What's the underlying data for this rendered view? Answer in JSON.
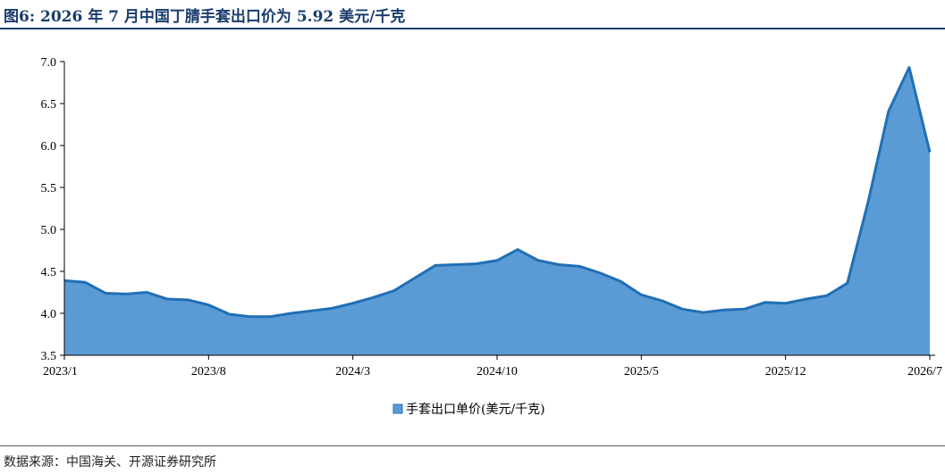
{
  "figure": {
    "title": "图6:  2026 年 7 月中国丁腈手套出口价为 5.92 美元/千克",
    "source": "数据来源：中国海关、开源证券研究所"
  },
  "colors": {
    "fill": "#5b9bd5",
    "line": "#1f6fb5",
    "axis": "#000000",
    "title": "#1a3c6e"
  },
  "chart_data": {
    "type": "area",
    "title": "",
    "xlabel": "",
    "ylabel": "",
    "ylim": [
      3.5,
      7.0
    ],
    "yticks": [
      "3.5",
      "4.0",
      "4.5",
      "5.0",
      "5.5",
      "6.0",
      "6.5",
      "7.0"
    ],
    "x_tick_labels": [
      "2023/1",
      "2023/8",
      "2024/3",
      "2024/10",
      "2025/5",
      "2025/12",
      "2026/7"
    ],
    "x_tick_positions": [
      "2023/1",
      "2023/8",
      "2024/3",
      "2024/10",
      "2025/5",
      "2025/12",
      "2026/7"
    ],
    "grid": false,
    "legend": "bottom-center",
    "x": [
      "2023/1",
      "2023/2",
      "2023/3",
      "2023/4",
      "2023/5",
      "2023/6",
      "2023/7",
      "2023/8",
      "2023/9",
      "2023/10",
      "2023/11",
      "2023/12",
      "2024/1",
      "2024/2",
      "2024/3",
      "2024/4",
      "2024/5",
      "2024/6",
      "2024/7",
      "2024/8",
      "2024/9",
      "2024/10",
      "2024/11",
      "2024/12",
      "2025/1",
      "2025/2",
      "2025/3",
      "2025/4",
      "2025/5",
      "2025/6",
      "2025/7",
      "2025/8",
      "2025/9",
      "2025/10",
      "2025/11",
      "2025/12",
      "2026/1",
      "2026/2",
      "2026/3",
      "2026/4",
      "2026/5",
      "2026/6",
      "2026/7"
    ],
    "series": [
      {
        "name": "手套出口单价(美元/千克)",
        "values": [
          4.39,
          4.37,
          4.24,
          4.23,
          4.25,
          4.17,
          4.16,
          4.1,
          3.99,
          3.96,
          3.96,
          4.0,
          4.03,
          4.06,
          4.12,
          4.19,
          4.27,
          4.42,
          4.57,
          4.58,
          4.59,
          4.63,
          4.76,
          4.63,
          4.58,
          4.56,
          4.48,
          4.38,
          4.22,
          4.15,
          4.05,
          4.01,
          4.04,
          4.05,
          4.13,
          4.12,
          4.17,
          4.21,
          4.36,
          5.32,
          6.41,
          6.93,
          5.92
        ]
      }
    ]
  }
}
